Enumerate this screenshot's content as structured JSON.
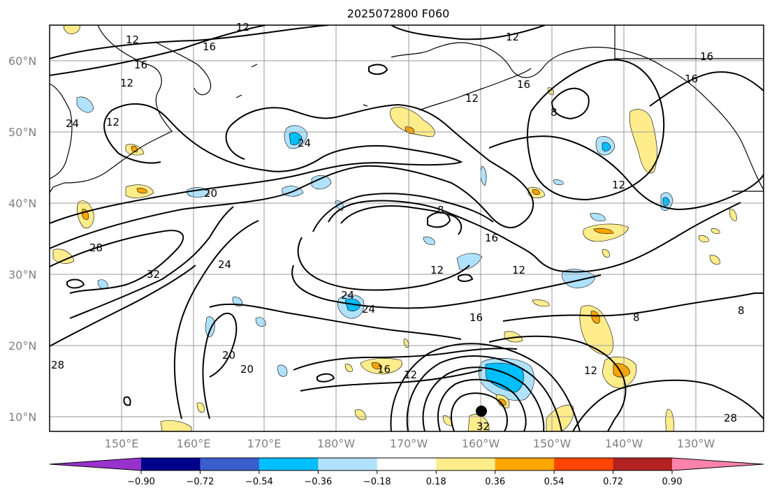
{
  "title": "2025072800 F060",
  "lat_labels": [
    "60°N",
    "50°N",
    "40°N",
    "30°N",
    "20°N",
    "10°N"
  ],
  "lon_labels": [
    "150°E",
    "160°E",
    "170°E",
    "180°W",
    "170°W",
    "160°W",
    "150°W",
    "140°W",
    "130°W"
  ],
  "contour_labels": [
    "12",
    "12",
    "12",
    "12",
    "16",
    "16",
    "16",
    "16",
    "16",
    "12",
    "12",
    "24",
    "12",
    "24",
    "24",
    "20",
    "20",
    "20",
    "8",
    "8",
    "8",
    "16",
    "12",
    "12",
    "12",
    "28",
    "28",
    "28",
    "32",
    "32",
    "24",
    "24",
    "16",
    "16",
    "12",
    "8"
  ],
  "colorbar": {
    "ticks": [
      "−0.90",
      "−0.72",
      "−0.54",
      "−0.36",
      "−0.18",
      "0.18",
      "0.36",
      "0.54",
      "0.72",
      "0.90"
    ],
    "colors": [
      "#9932cc",
      "#00008b",
      "#3a5fcd",
      "#00bfff",
      "#b0e2ff",
      "#ffffff",
      "#ffec8b",
      "#ffa500",
      "#ff4500",
      "#b22222",
      "#ff82ab"
    ]
  },
  "colors": {
    "contour": "#000000",
    "coast": "#000000",
    "grid": "#999999",
    "axis_text": "#808080"
  },
  "marker": "storm-center-dot"
}
